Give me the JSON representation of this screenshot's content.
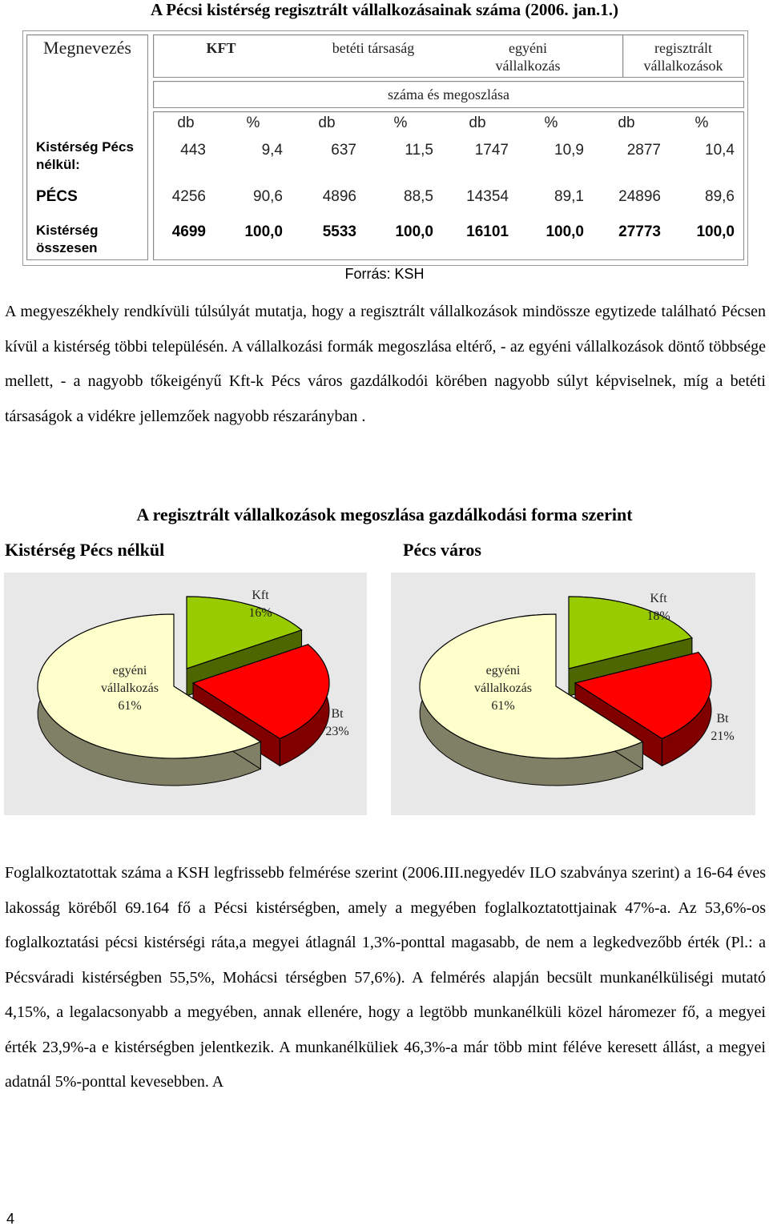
{
  "title": "A Pécsi kistérség regisztrált vállalkozásainak száma (2006. jan.1.)",
  "table": {
    "name_header": "Megnevezés",
    "group_headers": [
      "KFT",
      "betéti társaság",
      "egyéni vállalkozás",
      "regisztrált vállalkozások"
    ],
    "subheader": "száma és megoszlása",
    "unit_headers": [
      "db",
      "%",
      "db",
      "%",
      "db",
      "%",
      "db",
      "%"
    ],
    "rows": [
      {
        "label": "Kistérség Pécs nélkül:",
        "values": [
          "443",
          "9,4",
          "637",
          "11,5",
          "1747",
          "10,9",
          "2877",
          "10,4"
        ]
      },
      {
        "label": "PÉCS",
        "values": [
          "4256",
          "90,6",
          "4896",
          "88,5",
          "14354",
          "89,1",
          "24896",
          "89,6"
        ]
      },
      {
        "label": "Kistérség összesen",
        "values": [
          "4699",
          "100,0",
          "5533",
          "100,0",
          "16101",
          "100,0",
          "27773",
          "100,0"
        ]
      }
    ]
  },
  "source": "Forrás: KSH",
  "paragraph1": "A megyeszékhely rendkívüli túlsúlyát mutatja, hogy a regisztrált vállalkozások mindössze egytizede található Pécsen kívül a kistérség többi településén. A vállalkozási formák megoszlása eltérő, - az egyéni vállalkozások döntő többsége mellett, - a nagyobb tőkeigényű Kft-k Pécs város gazdálkodói körében nagyobb súlyt képviselnek, míg a betéti társaságok a vidékre jellemzőek nagyobb részarányban .",
  "charts_title": "A regisztrált vállalkozások megoszlása gazdálkodási forma szerint",
  "chart_data": [
    {
      "type": "pie",
      "title": "Kistérség Pécs nélkül",
      "categories": [
        "Kft",
        "Bt",
        "egyéni vállalkozás"
      ],
      "values": [
        16,
        23,
        61
      ],
      "labels": [
        "16%",
        "23%",
        "61%"
      ],
      "colors": [
        "#99cc00",
        "#ff0000",
        "#ffffcc"
      ]
    },
    {
      "type": "pie",
      "title": "Pécs város",
      "categories": [
        "Kft",
        "Bt",
        "egyéni vállalkozás"
      ],
      "values": [
        18,
        21,
        61
      ],
      "labels": [
        "18%",
        "21%",
        "61%"
      ],
      "colors": [
        "#99cc00",
        "#ff0000",
        "#ffffcc"
      ]
    }
  ],
  "paragraph2": "Foglalkoztatottak száma a KSH legfrissebb felmérése szerint (2006.III.negyedév ILO szabványa szerint) a 16-64 éves lakosság köréből 69.164 fő a Pécsi kistérségben, amely a megyében foglalkoztatottjainak 47%-a. Az 53,6%-os foglalkoztatási pécsi kistérségi ráta,a megyei átlagnál 1,3%-ponttal magasabb, de nem a legkedvezőbb érték (Pl.: a Pécsváradi kistérségben 55,5%, Mohácsi térségben 57,6%). A felmérés alapján becsült munkanélküliségi mutató 4,15%, a legalacsonyabb a megyében, annak ellenére, hogy a legtöbb munkanélküli közel háromezer fő, a megyei érték 23,9%-a e kistérségben jelentkezik. A munkanélküliek 46,3%-a már több mint féléve keresett állást, a megyei adatnál 5%-ponttal kevesebben. A",
  "page_number": "4"
}
